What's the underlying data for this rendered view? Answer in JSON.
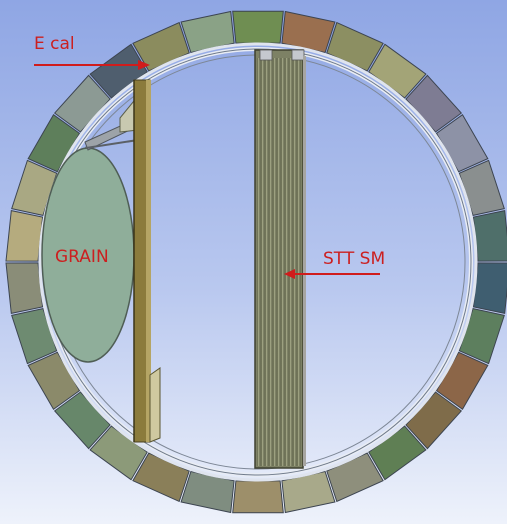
{
  "labels": {
    "ecal": "E cal",
    "grain": "GRAIN",
    "stt": "STT SM"
  },
  "ecal_module_colors": [
    "#6f8e52",
    "#9a6f4f",
    "#8c8f62",
    "#a3a477",
    "#7e7c93",
    "#8d92a6",
    "#8a8f8f",
    "#4f6f6a",
    "#3f5e70",
    "#5d7f5e",
    "#8c6648",
    "#7f6c4a",
    "#5f7f54",
    "#8e8f7c",
    "#a8a98a",
    "#9d8f6a",
    "#7f8d80",
    "#8a7f59",
    "#8c9a79",
    "#67876a",
    "#8b8a6a",
    "#6e8b71",
    "#8a8d78",
    "#b5ab7e",
    "#a9a883",
    "#5e7f5b",
    "#8c9a94",
    "#4f5e6e",
    "#8b8c5e",
    "#8aa286"
  ],
  "colors": {
    "arrow": "#d01c1c",
    "label": "#cc1f1f",
    "grain_fill": "#8fae9a",
    "frame": "#8b7b3c",
    "ring_edge": "#6f7a8a"
  }
}
